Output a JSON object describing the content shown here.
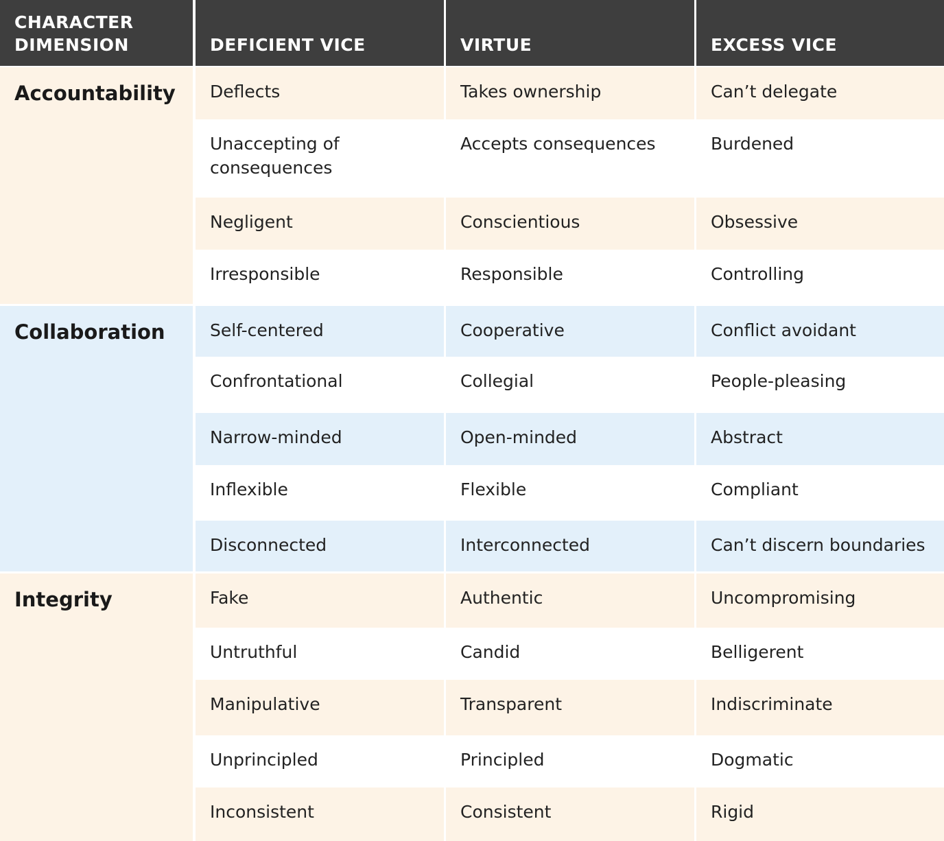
{
  "header": {
    "character_dimension": "CHARACTER DIMENSION",
    "character_dimension_lines": [
      "CHARACTER",
      "DIMENSION"
    ],
    "deficient_vice": "DEFICIENT VICE",
    "virtue": "VIRTUE",
    "excess_vice": "EXCESS VICE"
  },
  "colors": {
    "header_bg": "#3e3e3e",
    "header_text": "#ffffff",
    "accountability_tint": "#fdf3e6",
    "collaboration_tint": "#e3f0fa",
    "integrity_tint": "#fdf3e6",
    "white": "#ffffff"
  },
  "groups": [
    {
      "dimension": "Accountability",
      "tint": "#fdf3e6",
      "rows": [
        {
          "deficient": "Deflects",
          "virtue": "Takes ownership",
          "excess": "Can’t delegate"
        },
        {
          "deficient": "Unaccepting of consequences",
          "virtue": "Accepts consequences",
          "excess": "Burdened"
        },
        {
          "deficient": "Negligent",
          "virtue": "Conscientious",
          "excess": "Obsessive"
        },
        {
          "deficient": "Irresponsible",
          "virtue": "Responsible",
          "excess": "Controlling"
        }
      ]
    },
    {
      "dimension": "Collaboration",
      "tint": "#e3f0fa",
      "rows": [
        {
          "deficient": "Self-centered",
          "virtue": "Cooperative",
          "excess": "Conflict avoidant"
        },
        {
          "deficient": "Confrontational",
          "virtue": "Collegial",
          "excess": "People-pleasing"
        },
        {
          "deficient": "Narrow-minded",
          "virtue": "Open-minded",
          "excess": "Abstract"
        },
        {
          "deficient": "Inflexible",
          "virtue": "Flexible",
          "excess": "Compliant"
        },
        {
          "deficient": "Disconnected",
          "virtue": "Interconnected",
          "excess": "Can’t discern boundaries"
        }
      ]
    },
    {
      "dimension": "Integrity",
      "tint": "#fdf3e6",
      "rows": [
        {
          "deficient": "Fake",
          "virtue": "Authentic",
          "excess": "Uncompromising"
        },
        {
          "deficient": "Untruthful",
          "virtue": "Candid",
          "excess": "Belligerent"
        },
        {
          "deficient": "Manipulative",
          "virtue": "Transparent",
          "excess": "Indiscriminate"
        },
        {
          "deficient": "Unprincipled",
          "virtue": "Principled",
          "excess": "Dogmatic"
        },
        {
          "deficient": "Inconsistent",
          "virtue": "Consistent",
          "excess": "Rigid"
        }
      ]
    }
  ]
}
